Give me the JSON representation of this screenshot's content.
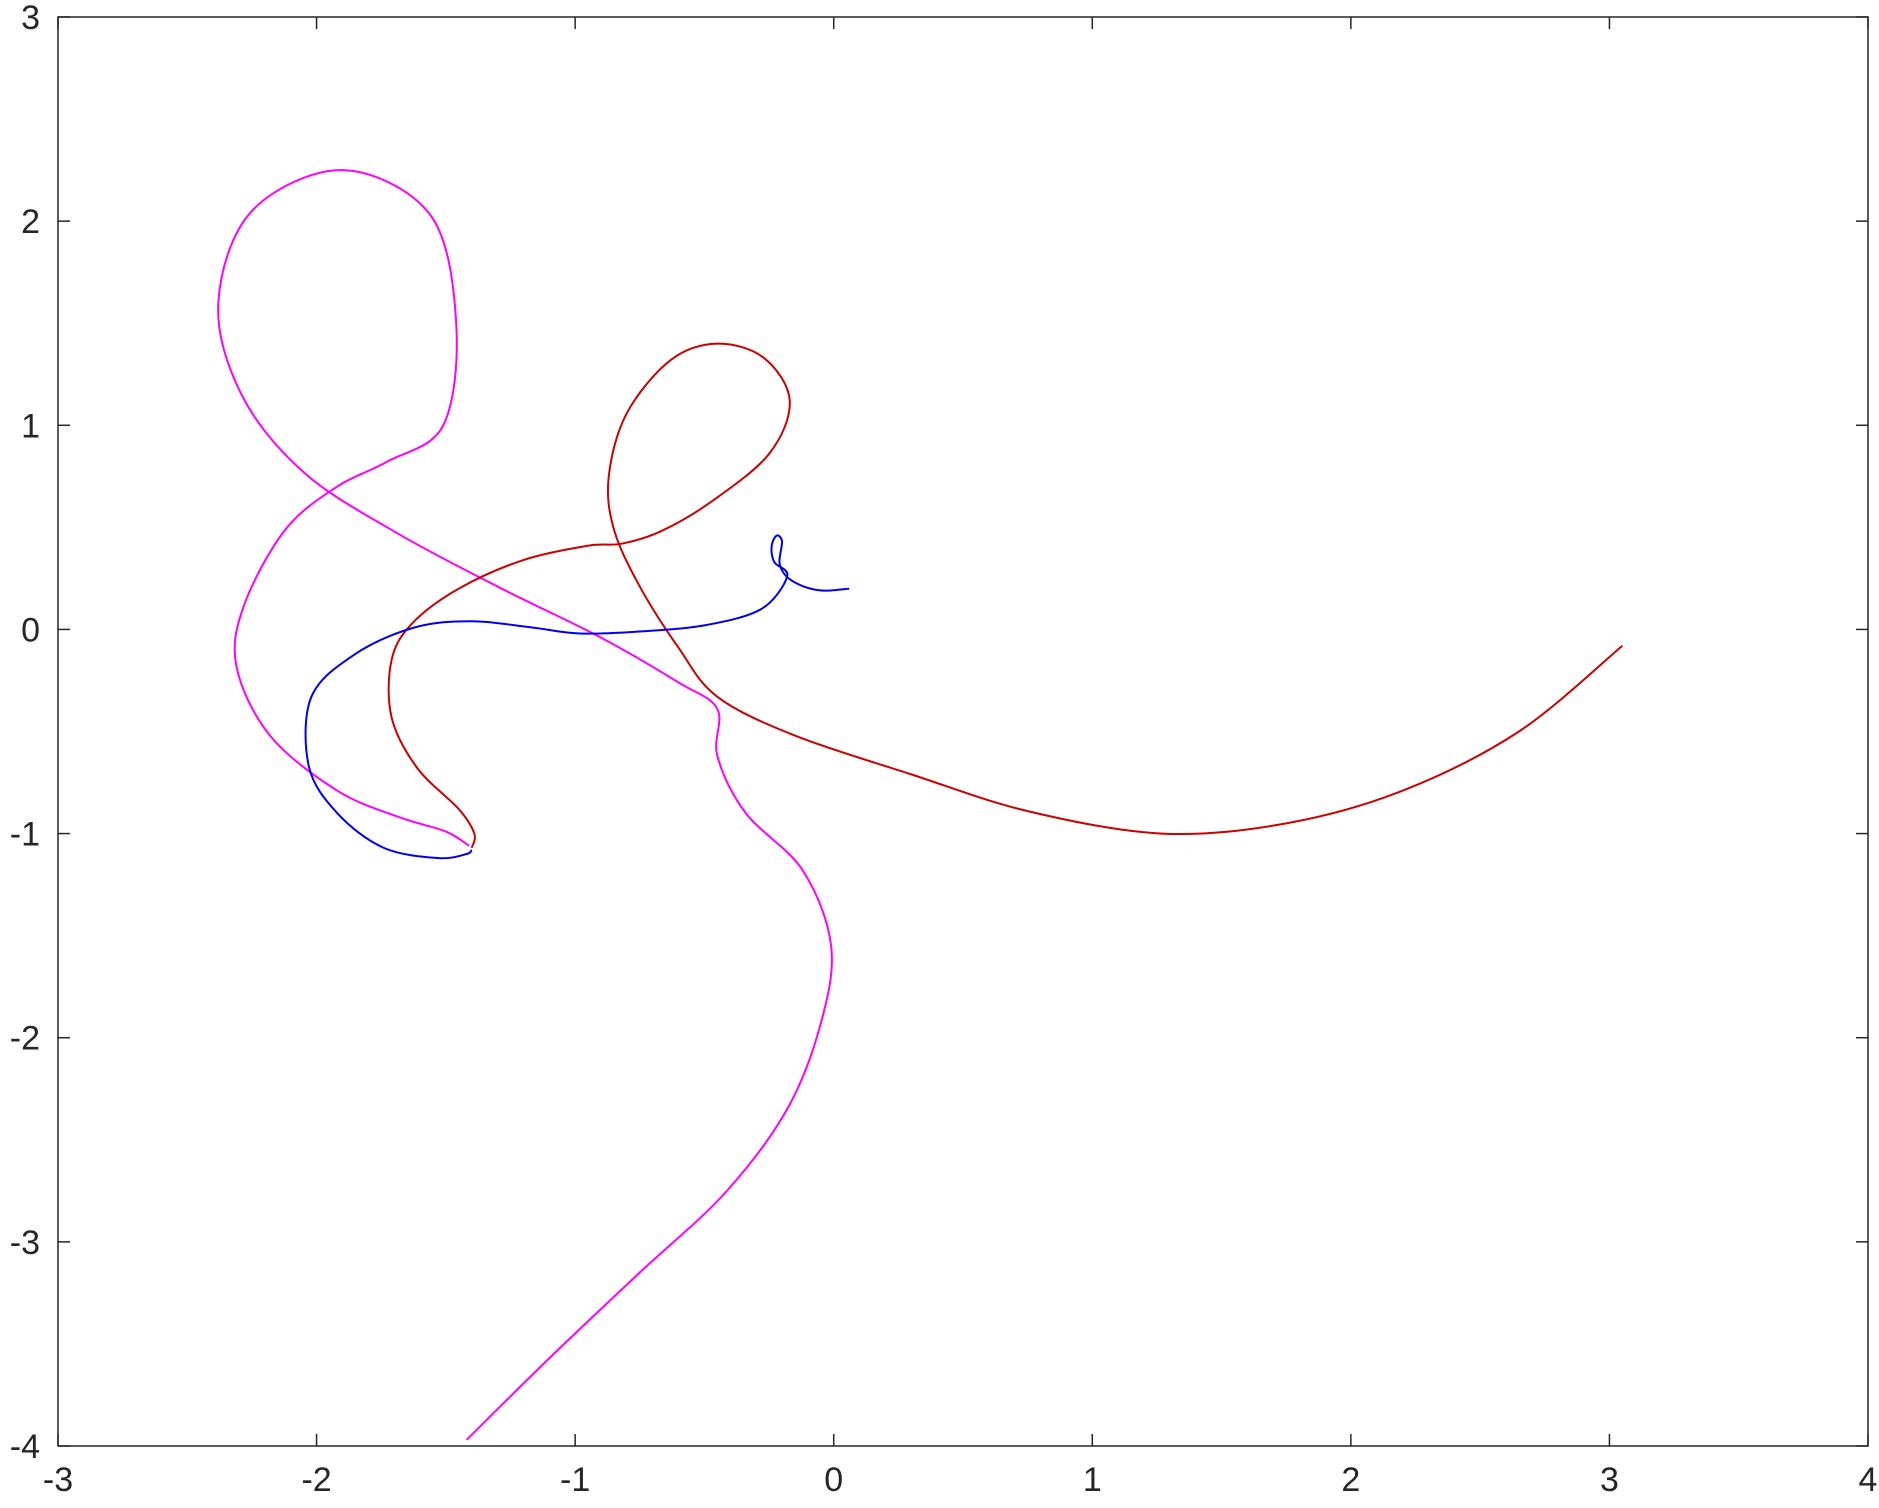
{
  "chart_data": {
    "type": "line",
    "title": "",
    "xlabel": "",
    "ylabel": "",
    "xlim": [
      -3,
      4
    ],
    "ylim": [
      -4,
      3
    ],
    "grid": false,
    "box": true,
    "x_ticks": [
      -3,
      -2,
      -1,
      0,
      1,
      2,
      3,
      4
    ],
    "y_ticks": [
      -4,
      -3,
      -2,
      -1,
      0,
      1,
      2,
      3
    ],
    "x_tick_labels": [
      "-3",
      "-2",
      "-1",
      "0",
      "1",
      "2",
      "3",
      "4"
    ],
    "y_tick_labels": [
      "-4",
      "-3",
      "-2",
      "-1",
      "0",
      "1",
      "2",
      "3"
    ],
    "series": [
      {
        "color": "#ff00ff",
        "points": [
          [
            -1.42,
            -3.97
          ],
          [
            -1.1,
            -3.57
          ],
          [
            -0.75,
            -3.15
          ],
          [
            -0.42,
            -2.76
          ],
          [
            -0.18,
            -2.35
          ],
          [
            -0.05,
            -1.93
          ],
          [
            -0.01,
            -1.55
          ],
          [
            -0.12,
            -1.18
          ],
          [
            -0.34,
            -0.9
          ],
          [
            -0.45,
            -0.62
          ],
          [
            -0.45,
            -0.39
          ],
          [
            -0.6,
            -0.26
          ],
          [
            -0.9,
            -0.04
          ],
          [
            -1.3,
            0.21
          ],
          [
            -1.7,
            0.48
          ],
          [
            -2.05,
            0.77
          ],
          [
            -2.29,
            1.15
          ],
          [
            -2.38,
            1.6
          ],
          [
            -2.25,
            2.05
          ],
          [
            -1.9,
            2.25
          ],
          [
            -1.56,
            2.03
          ],
          [
            -1.46,
            1.5
          ],
          [
            -1.51,
            1.0
          ],
          [
            -1.73,
            0.82
          ],
          [
            -1.92,
            0.7
          ],
          [
            -2.12,
            0.49
          ],
          [
            -2.28,
            0.12
          ],
          [
            -2.31,
            -0.18
          ],
          [
            -2.18,
            -0.52
          ],
          [
            -1.92,
            -0.79
          ],
          [
            -1.68,
            -0.92
          ],
          [
            -1.5,
            -0.99
          ],
          [
            -1.41,
            -1.06
          ]
        ]
      },
      {
        "color": "#cc0000",
        "points": [
          [
            -1.4,
            -1.07
          ],
          [
            -1.39,
            -1.0
          ],
          [
            -1.45,
            -0.88
          ],
          [
            -1.61,
            -0.68
          ],
          [
            -1.71,
            -0.43
          ],
          [
            -1.71,
            -0.15
          ],
          [
            -1.63,
            0.03
          ],
          [
            -1.45,
            0.2
          ],
          [
            -1.2,
            0.34
          ],
          [
            -0.95,
            0.41
          ],
          [
            -0.82,
            0.42
          ],
          [
            -0.67,
            0.48
          ],
          [
            -0.48,
            0.62
          ],
          [
            -0.25,
            0.86
          ],
          [
            -0.17,
            1.12
          ],
          [
            -0.27,
            1.33
          ],
          [
            -0.45,
            1.4
          ],
          [
            -0.63,
            1.32
          ],
          [
            -0.8,
            1.06
          ],
          [
            -0.87,
            0.75
          ],
          [
            -0.85,
            0.49
          ],
          [
            -0.75,
            0.21
          ],
          [
            -0.6,
            -0.09
          ],
          [
            -0.45,
            -0.33
          ],
          [
            -0.15,
            -0.52
          ],
          [
            0.3,
            -0.71
          ],
          [
            0.75,
            -0.89
          ],
          [
            1.27,
            -1.0
          ],
          [
            1.75,
            -0.95
          ],
          [
            2.2,
            -0.79
          ],
          [
            2.65,
            -0.5
          ],
          [
            3.05,
            -0.08
          ]
        ]
      },
      {
        "color": "#0000ee",
        "points": [
          [
            0.06,
            0.2
          ],
          [
            -0.03,
            0.19
          ],
          [
            -0.09,
            0.2
          ],
          [
            -0.15,
            0.23
          ],
          [
            -0.19,
            0.27
          ],
          [
            -0.21,
            0.33
          ],
          [
            -0.2,
            0.43
          ],
          [
            -0.22,
            0.46
          ],
          [
            -0.24,
            0.41
          ],
          [
            -0.23,
            0.33
          ],
          [
            -0.18,
            0.26
          ],
          [
            -0.28,
            0.1
          ],
          [
            -0.5,
            0.02
          ],
          [
            -0.75,
            -0.01
          ],
          [
            -0.98,
            -0.02
          ],
          [
            -1.17,
            0.01
          ],
          [
            -1.4,
            0.04
          ],
          [
            -1.62,
            0.01
          ],
          [
            -1.85,
            -0.12
          ],
          [
            -2.02,
            -0.33
          ],
          [
            -2.03,
            -0.67
          ],
          [
            -1.92,
            -0.9
          ],
          [
            -1.74,
            -1.07
          ],
          [
            -1.53,
            -1.12
          ],
          [
            -1.42,
            -1.1
          ],
          [
            -1.4,
            -1.08
          ]
        ]
      }
    ]
  }
}
